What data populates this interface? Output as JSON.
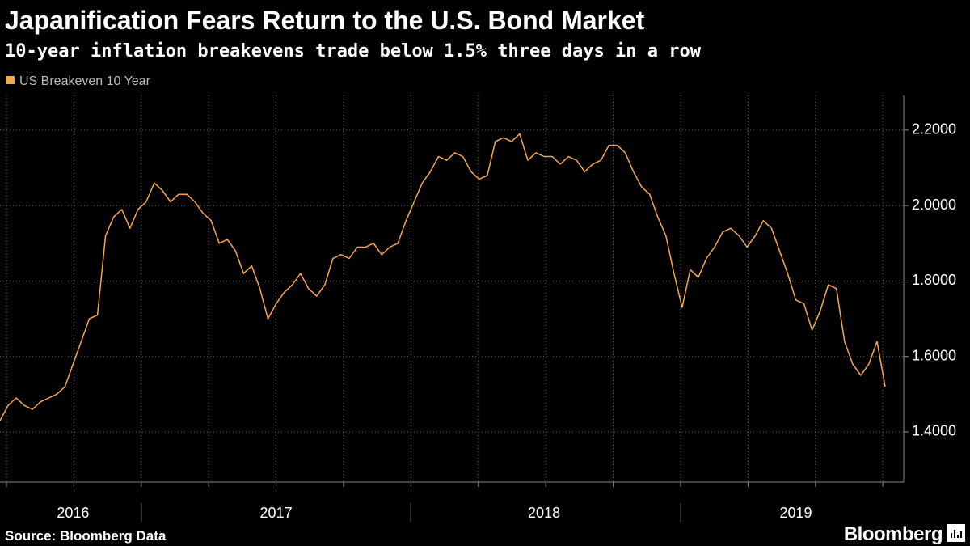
{
  "chart_data": {
    "type": "line",
    "title": "Japanification Fears Return to the U.S. Bond Market",
    "subtitle": "10-year inflation breakevens trade below 1.5% three days in a row",
    "source": "Source: Bloomberg Data",
    "brand": "Bloomberg",
    "categories": [
      null,
      null,
      null,
      null,
      null,
      null,
      null,
      null,
      null,
      "2016",
      null,
      null,
      null,
      null,
      null,
      null,
      null,
      null,
      null,
      null,
      null,
      null,
      null,
      null,
      null,
      null,
      null,
      null,
      null,
      null,
      null,
      null,
      null,
      null,
      "2017",
      null,
      null,
      null,
      null,
      null,
      null,
      null,
      null,
      null,
      null,
      null,
      null,
      null,
      null,
      null,
      null,
      null,
      null,
      null,
      null,
      null,
      null,
      null,
      null,
      null,
      null,
      null,
      null,
      null,
      null,
      null,
      null,
      "2018",
      null,
      null,
      null,
      null,
      null,
      null,
      null,
      null,
      null,
      null,
      null,
      null,
      null,
      null,
      null,
      null,
      null,
      null,
      null,
      null,
      null,
      null,
      null,
      null,
      null,
      null,
      null,
      null,
      null,
      null,
      "2019",
      null,
      null,
      null,
      null,
      null,
      null,
      null,
      null,
      null,
      null,
      null
    ],
    "series": [
      {
        "name": "US Breakeven 10 Year",
        "color": "#f6a64c",
        "values": [
          1.43,
          1.47,
          1.49,
          1.47,
          1.46,
          1.48,
          1.49,
          1.5,
          1.52,
          1.58,
          1.64,
          1.7,
          1.71,
          1.92,
          1.97,
          1.99,
          1.94,
          1.99,
          2.01,
          2.06,
          2.04,
          2.01,
          2.03,
          2.03,
          2.01,
          1.98,
          1.96,
          1.9,
          1.91,
          1.88,
          1.82,
          1.84,
          1.78,
          1.7,
          1.74,
          1.77,
          1.79,
          1.82,
          1.78,
          1.76,
          1.79,
          1.86,
          1.87,
          1.86,
          1.89,
          1.89,
          1.9,
          1.87,
          1.89,
          1.9,
          1.96,
          2.01,
          2.06,
          2.09,
          2.13,
          2.12,
          2.14,
          2.13,
          2.09,
          2.07,
          2.08,
          2.17,
          2.18,
          2.17,
          2.19,
          2.12,
          2.14,
          2.13,
          2.13,
          2.11,
          2.13,
          2.12,
          2.09,
          2.11,
          2.12,
          2.16,
          2.16,
          2.14,
          2.09,
          2.05,
          2.03,
          1.97,
          1.92,
          1.82,
          1.73,
          1.83,
          1.81,
          1.86,
          1.89,
          1.93,
          1.94,
          1.92,
          1.89,
          1.92,
          1.96,
          1.94,
          1.88,
          1.82,
          1.75,
          1.74,
          1.67,
          1.72,
          1.79,
          1.78,
          1.64,
          1.58,
          1.55,
          1.58,
          1.64,
          1.52
        ]
      }
    ],
    "ylim": [
      1.267,
      2.292
    ],
    "yticks": [
      {
        "value": 1.4,
        "label": "1.4000"
      },
      {
        "value": 1.6,
        "label": "1.6000"
      },
      {
        "value": 1.8,
        "label": "1.8000"
      },
      {
        "value": 2.0,
        "label": "2.0000"
      },
      {
        "value": 2.2,
        "label": "2.2000"
      }
    ],
    "grid": true
  }
}
